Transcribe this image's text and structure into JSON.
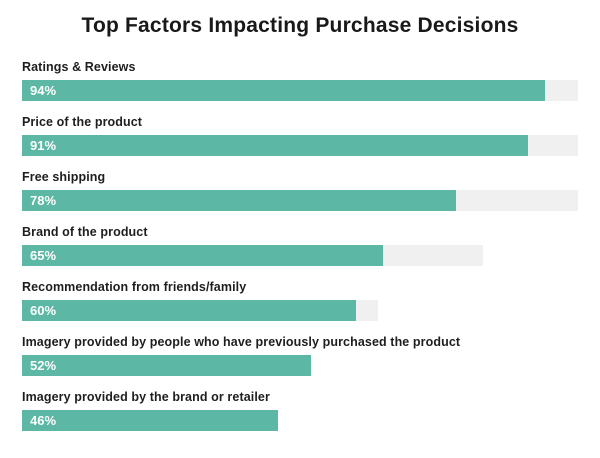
{
  "chart_data": {
    "type": "bar",
    "orientation": "horizontal",
    "title": "Top Factors Impacting Purchase Decisions",
    "xlabel": "",
    "ylabel": "",
    "unit": "%",
    "xlim": [
      0,
      100
    ],
    "grid": false,
    "legend": "none",
    "categories": [
      "Ratings & Reviews",
      "Price of the product",
      "Free shipping",
      "Brand of the product",
      "Recommendation from friends/family",
      "Imagery provided by people who have previously purchased the product",
      "Imagery provided by the brand or retailer"
    ],
    "values": [
      94,
      91,
      78,
      65,
      60,
      52,
      46
    ],
    "value_labels": [
      "94%",
      "91%",
      "78%",
      "65%",
      "60%",
      "52%",
      "46%"
    ],
    "track_percents": [
      100,
      100,
      100,
      83,
      64,
      52,
      46
    ],
    "colors": {
      "bar": "#5cb8a4",
      "track": "#f0f0f0",
      "title_text": "#191919",
      "label_text": "#1e1e1e",
      "value_text": "#ffffff",
      "background": "#ffffff"
    }
  }
}
